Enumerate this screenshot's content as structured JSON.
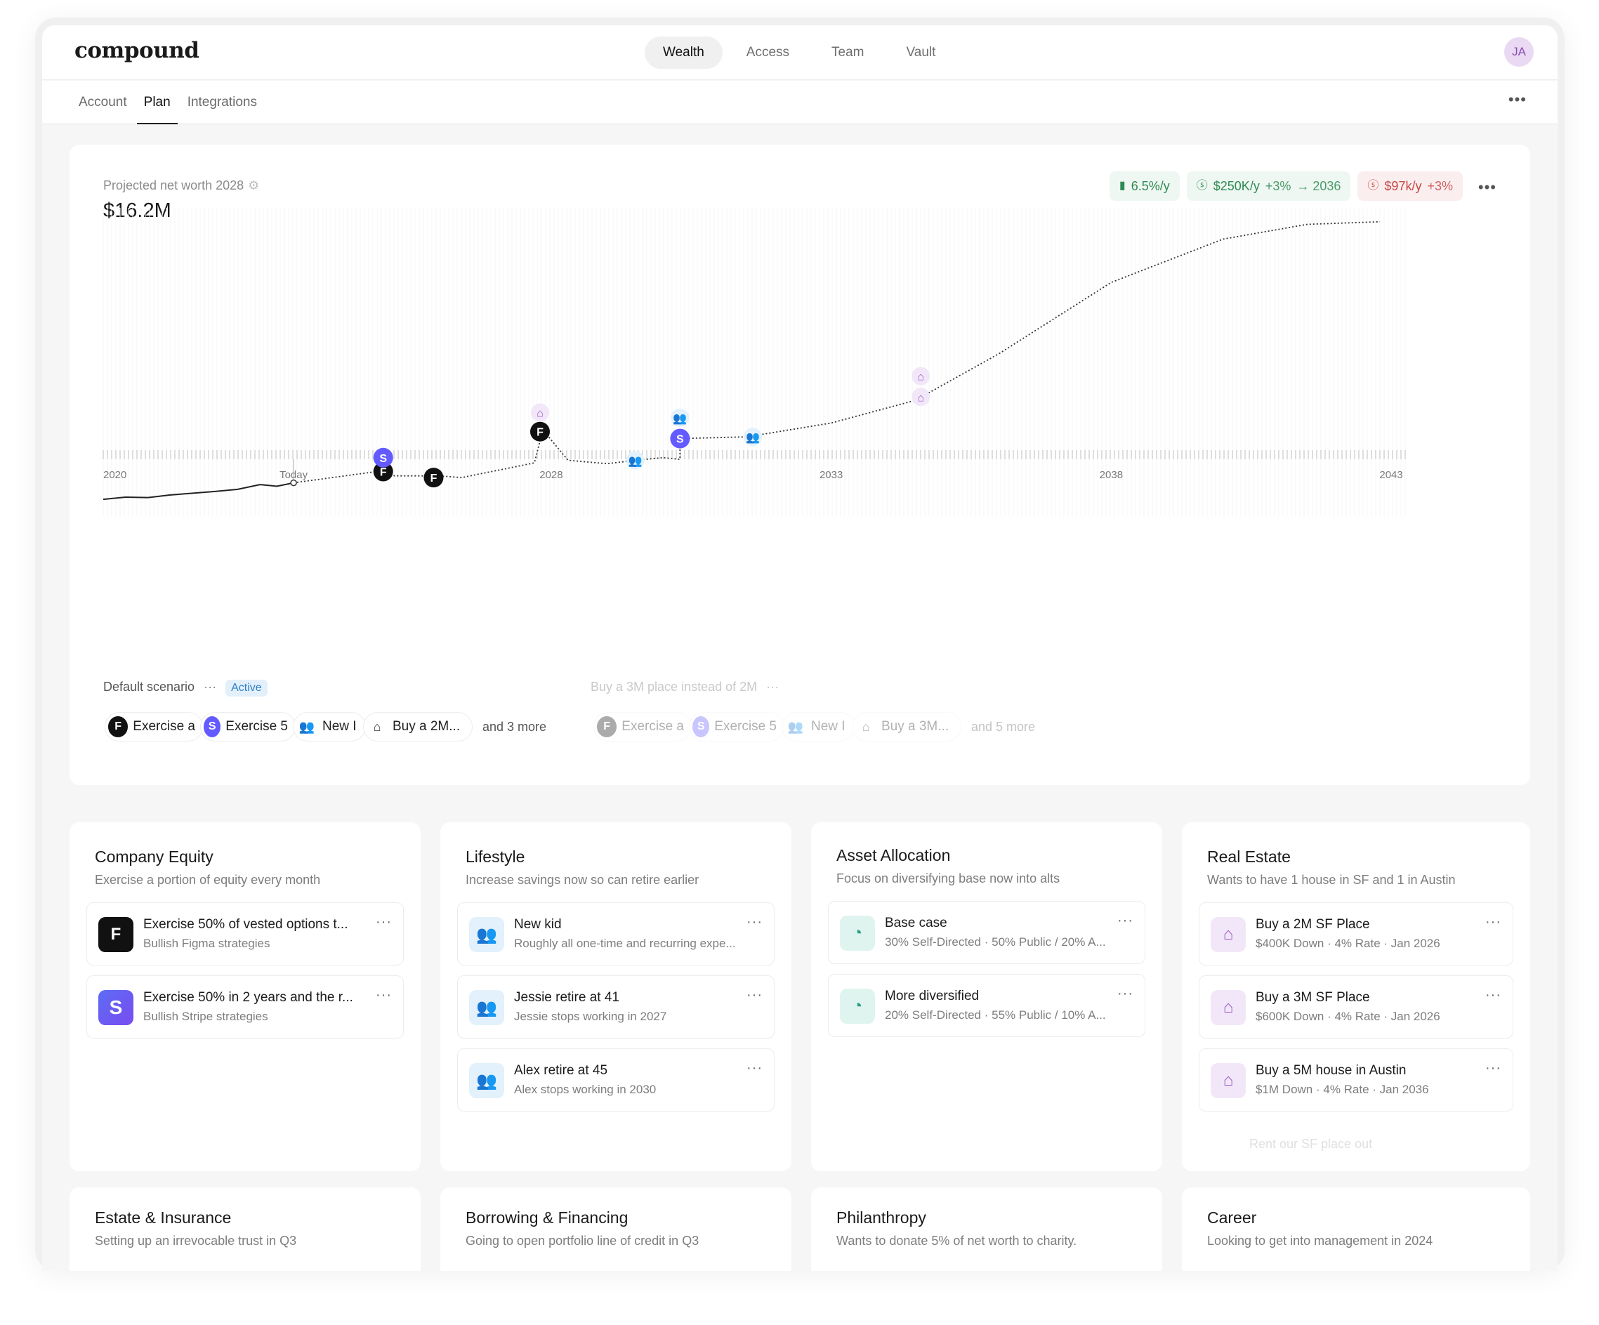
{
  "app": {
    "logo": "compound",
    "avatar_initials": "JA"
  },
  "main_nav": [
    "Wealth",
    "Access",
    "Team",
    "Vault"
  ],
  "sub_tabs": [
    "Account",
    "Plan",
    "Integrations"
  ],
  "projection": {
    "label": "Projected net worth 2028",
    "value": "$16.2M",
    "chips": [
      {
        "icon": "bar-chart-icon",
        "parts": [
          "6.5%/y"
        ],
        "tone": "green"
      },
      {
        "icon": "dollar-cycle-icon",
        "parts": [
          "$250K/y",
          "+3%",
          "→ 2036"
        ],
        "tone": "green"
      },
      {
        "icon": "dollar-cycle-icon",
        "parts": [
          "$97k/y",
          "+3%"
        ],
        "tone": "red"
      }
    ]
  },
  "chart_data": {
    "type": "line",
    "x_ticks": [
      "2020",
      "Today",
      "2028",
      "2033",
      "2038",
      "2043"
    ],
    "x_tick_years": [
      2020,
      2023.4,
      2028,
      2033,
      2038,
      2043
    ],
    "series": [
      {
        "style": "solid",
        "x": [
          2020,
          2020.4,
          2020.8,
          2021.2,
          2021.6,
          2022,
          2022.4,
          2022.8,
          2023.1,
          2023.4
        ],
        "y": [
          0.4,
          0.65,
          0.6,
          0.9,
          1.1,
          1.3,
          1.55,
          2.1,
          1.9,
          2.3
        ]
      },
      {
        "style": "dotted",
        "x": [
          2023.4,
          2025.0,
          2025.2,
          2026.0,
          2026.4,
          2027.7,
          2027.85,
          2028.3,
          2029.0,
          2029.5,
          2030.0,
          2030.3,
          2030.3,
          2031.5,
          2033.0,
          2034.5,
          2036.0,
          2038.0,
          2040.0,
          2041.5,
          2042.8
        ],
        "y": [
          2.3,
          3.7,
          3.1,
          3.1,
          2.9,
          4.6,
          8.4,
          4.9,
          4.5,
          4.9,
          5.2,
          5.0,
          7.4,
          7.6,
          9.2,
          11.8,
          17.2,
          25.4,
          30.4,
          32.1,
          32.4
        ]
      }
    ],
    "events": [
      {
        "x": 2025.0,
        "y": 3.6,
        "icon": "figma-icon"
      },
      {
        "x": 2025.0,
        "y": 5.2,
        "icon": "stripe-icon"
      },
      {
        "x": 2025.9,
        "y": 2.9,
        "icon": "figma-icon"
      },
      {
        "x": 2027.8,
        "y": 8.2,
        "icon": "figma-icon"
      },
      {
        "x": 2027.8,
        "y": 10.4,
        "icon": "home-icon"
      },
      {
        "x": 2029.5,
        "y": 4.9,
        "icon": "people-icon"
      },
      {
        "x": 2030.3,
        "y": 7.4,
        "icon": "stripe-icon"
      },
      {
        "x": 2030.3,
        "y": 9.8,
        "icon": "people-icon"
      },
      {
        "x": 2031.6,
        "y": 7.6,
        "icon": "people-icon"
      },
      {
        "x": 2034.6,
        "y": 12.2,
        "icon": "home-icon"
      },
      {
        "x": 2034.6,
        "y": 14.6,
        "icon": "home-icon"
      }
    ],
    "ylim": [
      0,
      34
    ],
    "xlim": [
      2020,
      2043.3
    ]
  },
  "scenarios": {
    "default": {
      "name": "Default scenario",
      "status": "Active",
      "events": [
        {
          "icon": "figma-icon",
          "label": "Exercise a"
        },
        {
          "icon": "stripe-icon",
          "label": "Exercise 5"
        },
        {
          "icon": "people-icon",
          "label": "New I"
        },
        {
          "icon": "home-icon",
          "label": "Buy a 2M..."
        }
      ],
      "more": "and 3 more"
    },
    "alt": {
      "name": "Buy a 3M place instead of 2M",
      "events": [
        {
          "icon": "figma-icon",
          "label": "Exercise a"
        },
        {
          "icon": "stripe-icon",
          "label": "Exercise 5"
        },
        {
          "icon": "people-icon",
          "label": "New I"
        },
        {
          "icon": "home-icon",
          "label": "Buy a 3M..."
        }
      ],
      "more": "and 5 more"
    }
  },
  "cards": [
    {
      "title": "Company Equity",
      "desc": "Exercise a portion of equity every month",
      "items": [
        {
          "icon": "figma-icon",
          "title": "Exercise 50% of vested options t...",
          "sub": "Bullish Figma strategies"
        },
        {
          "icon": "stripe-icon",
          "title": "Exercise 50% in 2 years and the r...",
          "sub": "Bullish Stripe strategies"
        }
      ]
    },
    {
      "title": "Lifestyle",
      "desc": "Increase savings now so can retire earlier",
      "items": [
        {
          "icon": "people-icon",
          "title": "New kid",
          "sub": "Roughly all one-time and recurring expe..."
        },
        {
          "icon": "people-icon",
          "title": "Jessie retire at 41",
          "sub": "Jessie stops working in 2027"
        },
        {
          "icon": "people-icon",
          "title": "Alex retire at 45",
          "sub": "Alex stops working in 2030"
        }
      ]
    },
    {
      "title": "Asset Allocation",
      "desc": "Focus on diversifying base now into alts",
      "items": [
        {
          "icon": "pie-chart-icon",
          "title": "Base case",
          "sub": "30% Self-Directed · 50% Public / 20% A..."
        },
        {
          "icon": "pie-chart-icon",
          "title": "More diversified",
          "sub": "20% Self-Directed · 55% Public / 10% A..."
        }
      ]
    },
    {
      "title": "Real Estate",
      "desc": "Wants to have 1 house in SF and 1 in Austin",
      "items": [
        {
          "icon": "home-icon",
          "title": "Buy a 2M SF Place",
          "sub": "$400K Down · 4% Rate · Jan 2026"
        },
        {
          "icon": "home-icon",
          "title": "Buy a 3M SF Place",
          "sub": "$600K Down · 4% Rate · Jan 2026"
        },
        {
          "icon": "home-icon",
          "title": "Buy a 5M house in Austin",
          "sub": "$1M Down · 4% Rate · Jan 2036"
        }
      ],
      "ghost": "Rent our SF place out"
    },
    {
      "title": "Estate & Insurance",
      "desc": "Setting up an irrevocable trust in Q3",
      "items": []
    },
    {
      "title": "Borrowing & Financing",
      "desc": "Going to open portfolio line of credit in Q3",
      "items": []
    },
    {
      "title": "Philanthropy",
      "desc": "Wants to donate 5% of net worth to charity.",
      "items": []
    },
    {
      "title": "Career",
      "desc": "Looking to get into management in 2024",
      "items": []
    }
  ]
}
